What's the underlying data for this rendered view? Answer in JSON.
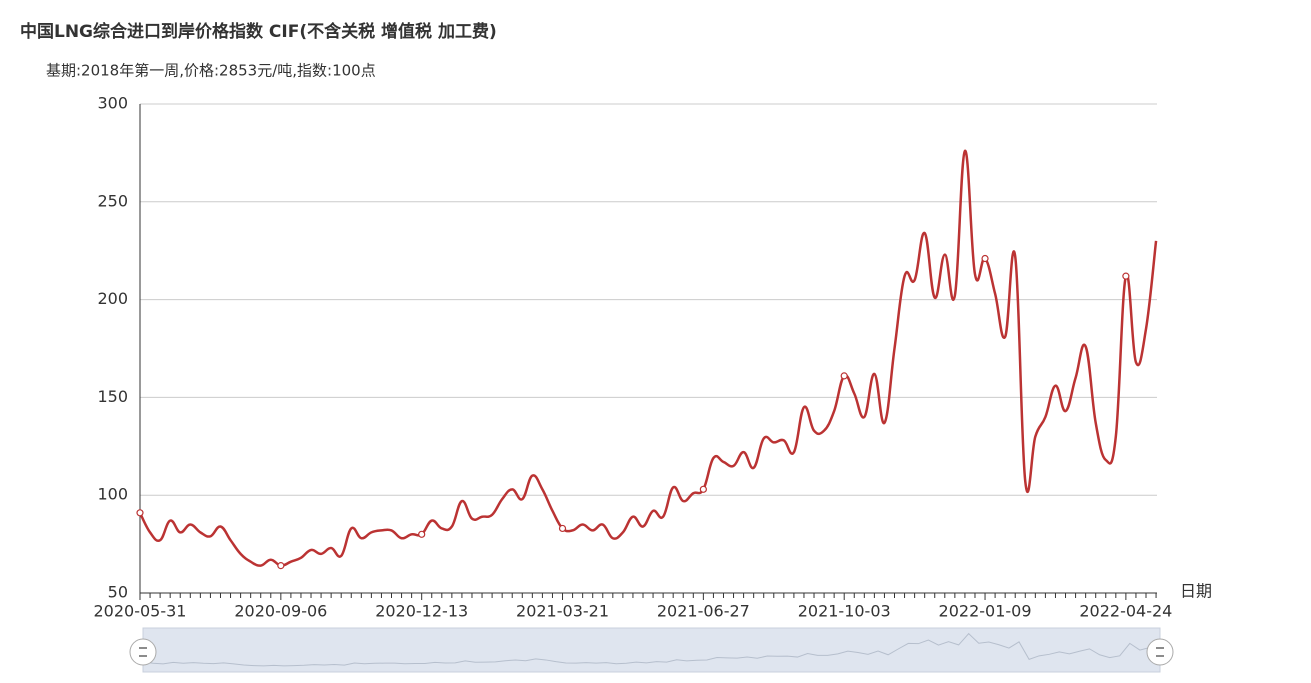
{
  "chart_data": {
    "type": "line",
    "title": "中国LNG综合进口到岸价格指数  CIF(不含关税  增值税 加工费)",
    "subtitle": "基期:2018年第一周,价格:2853元/吨,指数:100点",
    "x_label": "日期",
    "categories": [
      "2020-05-31",
      null,
      null,
      null,
      null,
      null,
      null,
      null,
      null,
      null,
      null,
      null,
      null,
      null,
      "2020-09-06",
      null,
      null,
      null,
      null,
      null,
      null,
      null,
      null,
      null,
      null,
      null,
      null,
      null,
      "2020-12-13",
      null,
      null,
      null,
      null,
      null,
      null,
      null,
      null,
      null,
      null,
      null,
      null,
      null,
      "2021-03-21",
      null,
      null,
      null,
      null,
      null,
      null,
      null,
      null,
      null,
      null,
      null,
      null,
      null,
      "2021-06-27",
      null,
      null,
      null,
      null,
      null,
      null,
      null,
      null,
      null,
      null,
      null,
      null,
      null,
      "2021-10-03",
      null,
      null,
      null,
      null,
      null,
      null,
      null,
      null,
      null,
      null,
      null,
      null,
      null,
      "2022-01-09",
      null,
      null,
      null,
      null,
      null,
      null,
      null,
      null,
      null,
      null,
      null,
      null,
      null,
      "2022-04-24",
      null,
      null,
      null
    ],
    "values": [
      91,
      81,
      77,
      87,
      81,
      85,
      81,
      79,
      84,
      77,
      70,
      66,
      64,
      67,
      64,
      66,
      68,
      72,
      70,
      73,
      69,
      83,
      78,
      81,
      82,
      82,
      78,
      80,
      80,
      87,
      83,
      84,
      97,
      88,
      89,
      90,
      98,
      103,
      98,
      110,
      103,
      92,
      83,
      82,
      85,
      82,
      85,
      78,
      81,
      89,
      84,
      92,
      89,
      104,
      97,
      101,
      103,
      119,
      117,
      115,
      122,
      114,
      129,
      127,
      128,
      122,
      145,
      133,
      133,
      143,
      161,
      152,
      140,
      162,
      137,
      175,
      212,
      210,
      234,
      201,
      223,
      202,
      276,
      213,
      221,
      203,
      181,
      222,
      107,
      130,
      140,
      156,
      143,
      160,
      176,
      137,
      118,
      130,
      212,
      168,
      185,
      230
    ],
    "color": "#bb3333",
    "ylim": [
      50,
      300
    ],
    "yticks": [
      50,
      100,
      150,
      200,
      250,
      300
    ],
    "grid": true
  }
}
